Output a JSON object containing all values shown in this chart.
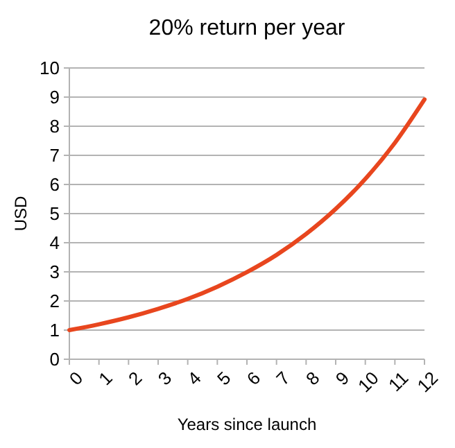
{
  "chart_data": {
    "type": "line",
    "title": "20% return per year",
    "xlabel": "Years since launch",
    "ylabel": "USD",
    "x": [
      0,
      1,
      2,
      3,
      4,
      5,
      6,
      7,
      8,
      9,
      10,
      11,
      12
    ],
    "series": [
      {
        "color": "#e8461e",
        "values": [
          1,
          1.2,
          1.44,
          1.73,
          2.07,
          2.49,
          2.99,
          3.58,
          4.3,
          5.16,
          6.19,
          7.43,
          8.92
        ]
      }
    ],
    "xlim": [
      0,
      12
    ],
    "xticks": [
      0,
      1,
      2,
      3,
      4,
      5,
      6,
      7,
      8,
      9,
      10,
      11,
      12
    ],
    "ylim": [
      0,
      10
    ],
    "yticks": [
      0,
      1,
      2,
      3,
      4,
      5,
      6,
      7,
      8,
      9,
      10
    ],
    "grid": "y",
    "marker": "none",
    "line_style": "solid"
  }
}
